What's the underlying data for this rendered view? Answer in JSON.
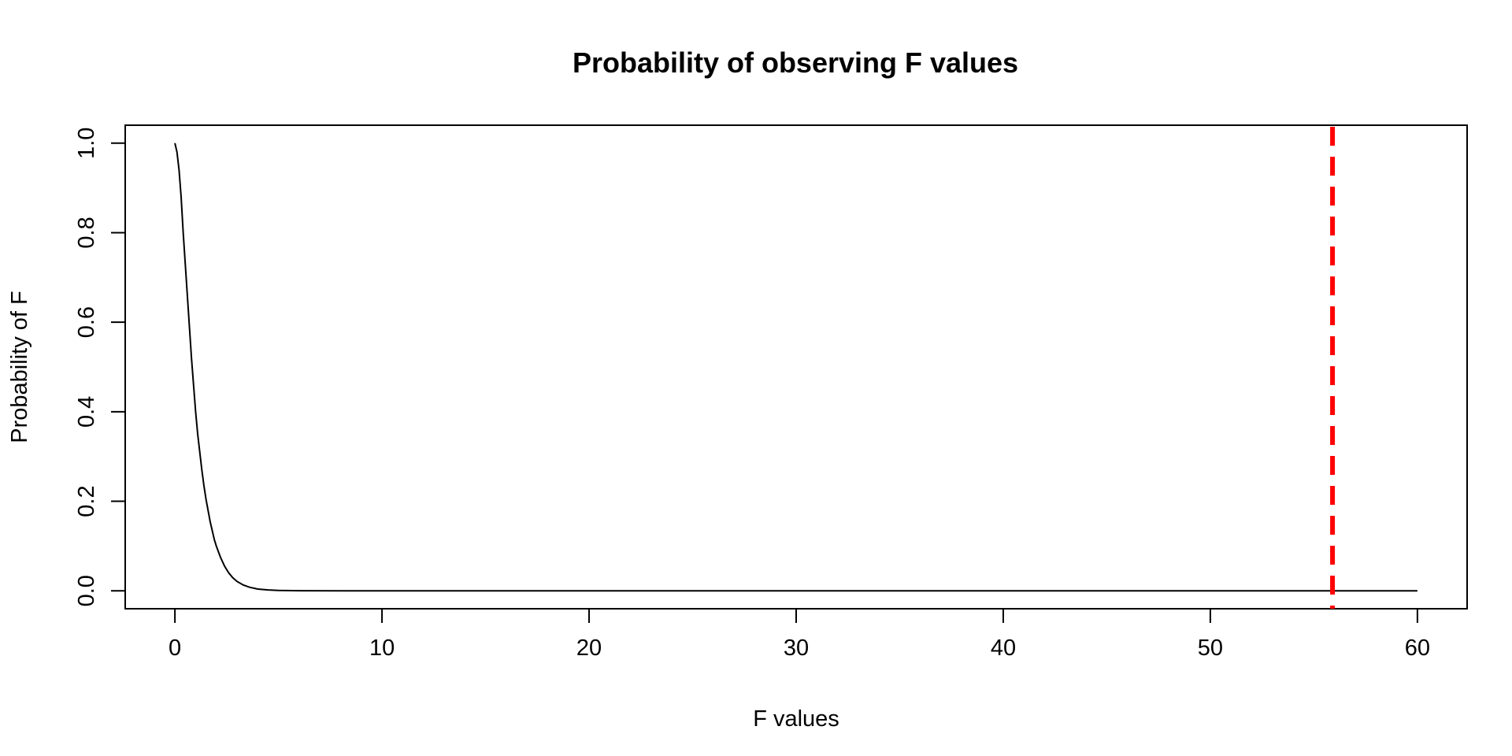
{
  "chart_data": {
    "type": "line",
    "title": "Probability of observing F values",
    "xlabel": "F values",
    "ylabel": "Probability of F",
    "xlim": [
      -2.4,
      62.4
    ],
    "ylim": [
      -0.04,
      1.04
    ],
    "x_ticks": [
      0,
      10,
      20,
      30,
      40,
      50,
      60
    ],
    "y_ticks": [
      0.0,
      0.2,
      0.4,
      0.6,
      0.8,
      1.0
    ],
    "x_tick_labels": [
      "0",
      "10",
      "20",
      "30",
      "40",
      "50",
      "60"
    ],
    "y_tick_labels": [
      "0.0",
      "0.2",
      "0.4",
      "0.6",
      "0.8",
      "1.0"
    ],
    "grid": false,
    "series": [
      {
        "color": "#000000",
        "x": [
          0,
          0.1,
          0.2,
          0.3,
          0.4,
          0.5,
          0.6,
          0.7,
          0.8,
          0.9,
          1.0,
          1.1,
          1.2,
          1.3,
          1.4,
          1.5,
          1.6,
          1.7,
          1.8,
          1.9,
          2.0,
          2.2,
          2.4,
          2.6,
          2.8,
          3.0,
          3.3,
          3.6,
          4.0,
          4.5,
          5.0,
          6.0,
          8.0,
          10,
          15,
          20,
          25,
          30,
          35,
          40,
          45,
          50,
          55,
          60
        ],
        "y": [
          1.0,
          0.98,
          0.94,
          0.88,
          0.8,
          0.73,
          0.66,
          0.59,
          0.52,
          0.46,
          0.4,
          0.35,
          0.31,
          0.27,
          0.235,
          0.205,
          0.18,
          0.155,
          0.135,
          0.115,
          0.1,
          0.075,
          0.055,
          0.04,
          0.029,
          0.021,
          0.013,
          0.008,
          0.004,
          0.002,
          0.001,
          0.0003,
          3e-05,
          0,
          0,
          0,
          0,
          0,
          0,
          0,
          0,
          0,
          0,
          0
        ]
      }
    ],
    "reference_line": {
      "x": 55.9,
      "color": "#ff0000",
      "style": "dashed"
    }
  }
}
